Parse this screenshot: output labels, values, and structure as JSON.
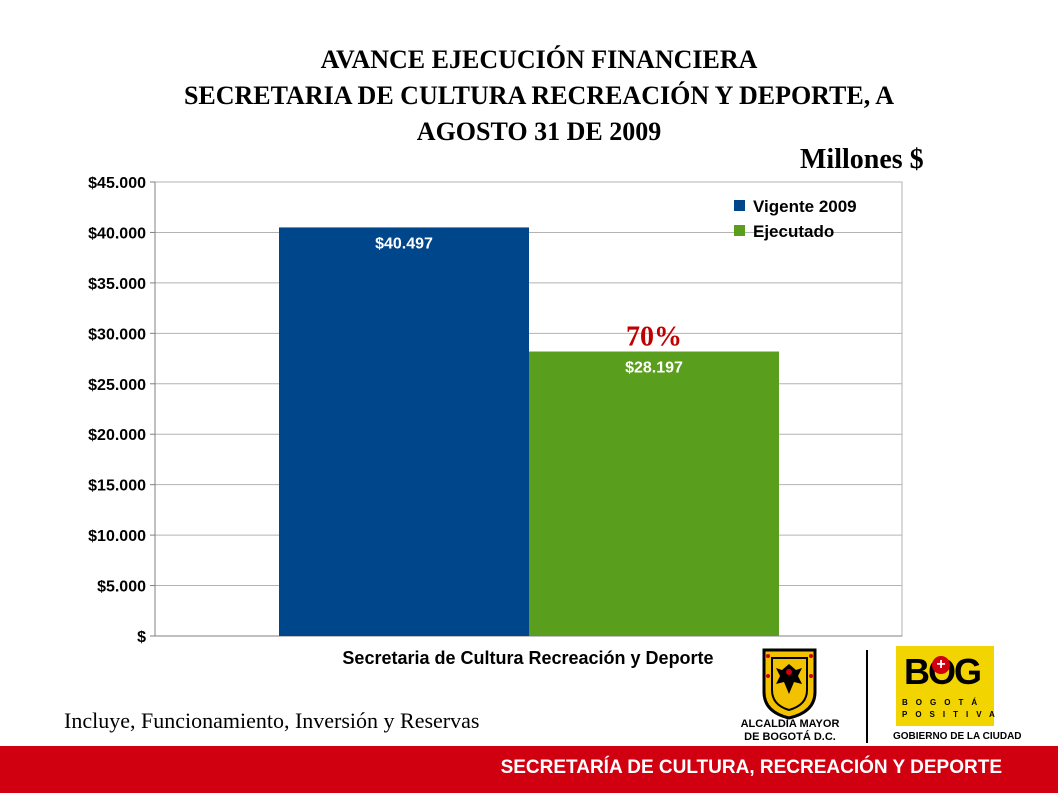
{
  "title": {
    "line1": "AVANCE EJECUCIÓN FINANCIERA",
    "line2": "SECRETARIA DE CULTURA RECREACIÓN Y DEPORTE,  A",
    "line3": "AGOSTO 31 DE 2009"
  },
  "units_label": "Millones $",
  "chart_data": {
    "type": "bar",
    "categories": [
      "Secretaria de Cultura Recreación y Deporte"
    ],
    "series": [
      {
        "name": "Vigente 2009",
        "values": [
          40497
        ],
        "color": "#00468b",
        "data_label": "$40.497"
      },
      {
        "name": "Ejecutado",
        "values": [
          28197
        ],
        "color": "#5a9e1e",
        "data_label": "$28.197"
      }
    ],
    "ylim": [
      0,
      45000
    ],
    "yticks": [
      "$ ",
      "$5.000",
      "$10.000",
      "$15.000",
      "$20.000",
      "$25.000",
      "$30.000",
      "$35.000",
      "$40.000",
      "$45.000"
    ],
    "ytick_values": [
      0,
      5000,
      10000,
      15000,
      20000,
      25000,
      30000,
      35000,
      40000,
      45000
    ],
    "grid": true,
    "legend_position": "top-right",
    "annotation": {
      "text": "70%",
      "color": "#c00000"
    }
  },
  "footnote": "Incluye, Funcionamiento, Inversión y Reservas",
  "footer_text": "SECRETARÍA DE CULTURA, RECREACIÓN Y DEPORTE",
  "logos": {
    "alcaldia_line1": "ALCALDÍA MAYOR",
    "alcaldia_line2": "DE BOGOTÁ D.C.",
    "bog_word": "BOG",
    "bog_cross": "+",
    "bog_row1": "BOGOTÁ",
    "bog_row2": "POSITIVA",
    "bog_gov": "GOBIERNO DE LA CIUDAD"
  }
}
